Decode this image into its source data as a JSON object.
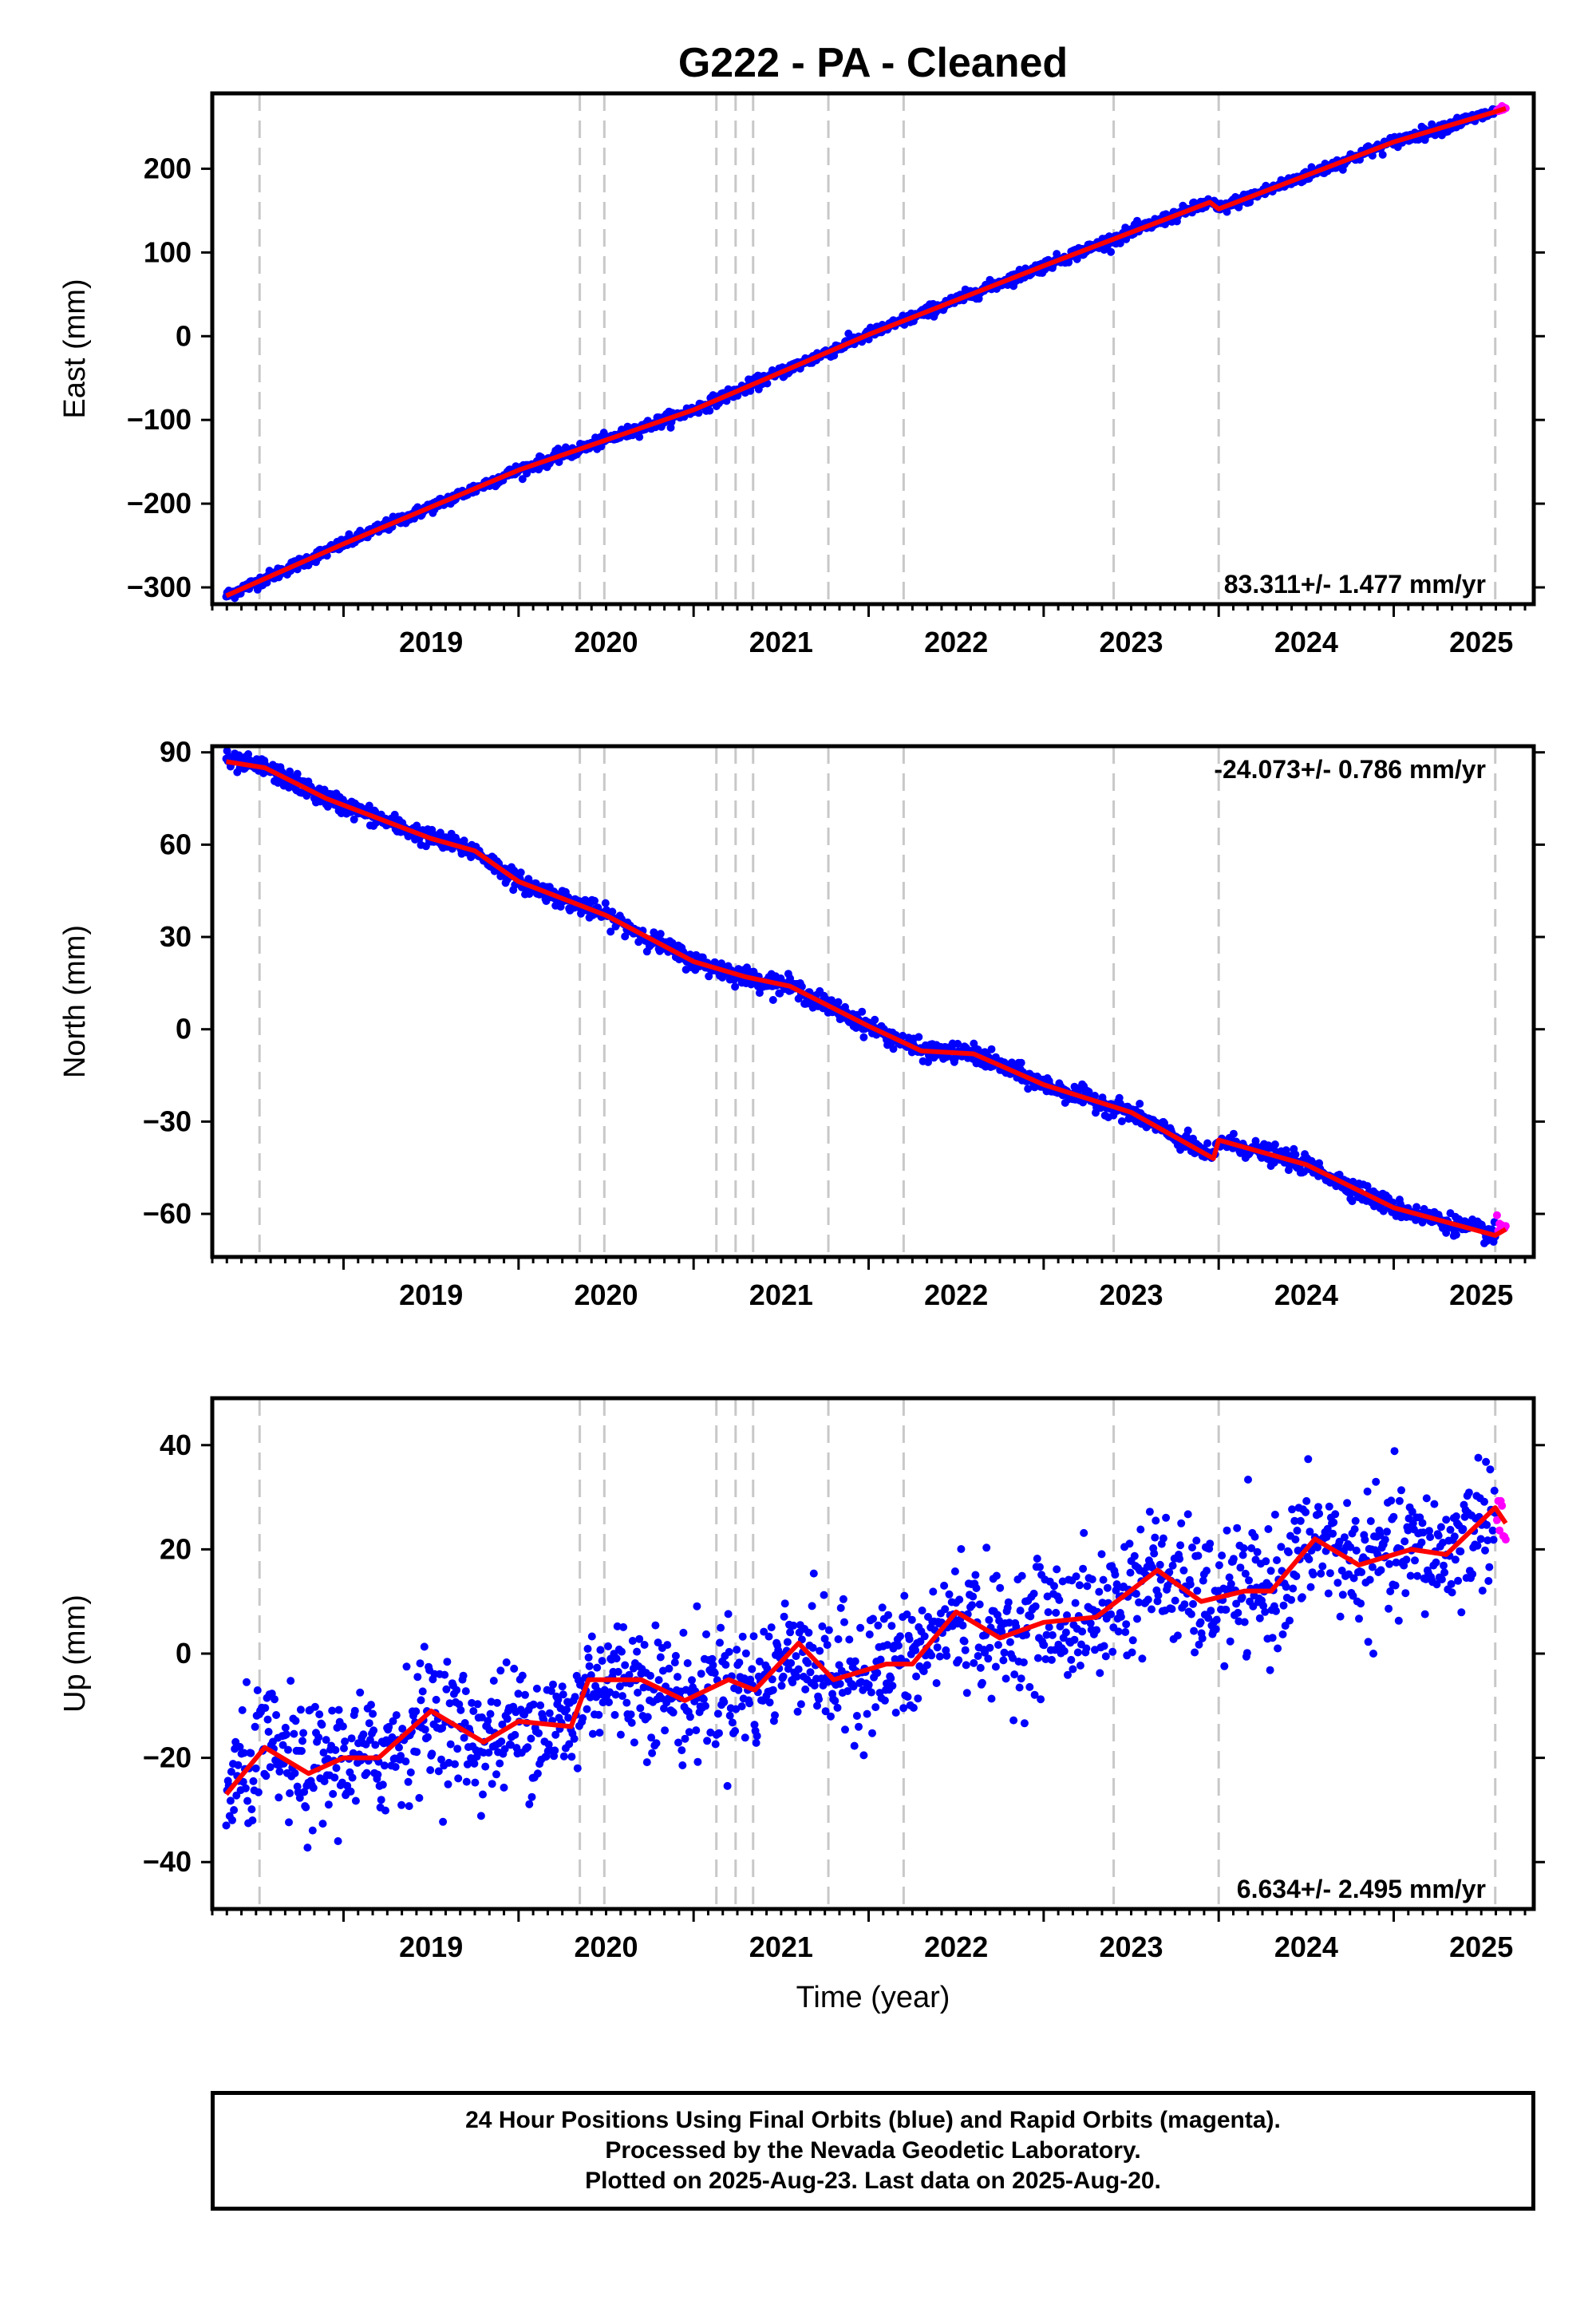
{
  "title": "G222  - PA - Cleaned",
  "colors": {
    "final_orbits": "#0000ff",
    "rapid_orbits": "#ff00ff",
    "model_fit": "#ff0000",
    "event_lines": "#c8c8c8",
    "frame": "#000000"
  },
  "footer": {
    "line1": "24 Hour Positions Using Final Orbits (blue) and Rapid Orbits (magenta).",
    "line2": "Processed by the Nevada Geodetic Laboratory.",
    "line3": "Plotted on 2025-Aug-23. Last data on 2025-Aug-20."
  },
  "chart_data": [
    {
      "type": "scatter",
      "ylabel": "East (mm)",
      "xlabel": "",
      "xlim": [
        2018.25,
        2025.8
      ],
      "ylim": [
        -320,
        290
      ],
      "yticks": [
        -300,
        -200,
        -100,
        0,
        100,
        200
      ],
      "xticks": [
        2019,
        2020,
        2021,
        2022,
        2023,
        2024,
        2025
      ],
      "rate_label": "83.311+/- 1.477 mm/yr",
      "rate_label_position": "bottom-right",
      "event_lines": [
        2018.52,
        2020.35,
        2020.49,
        2021.13,
        2021.24,
        2021.34,
        2021.77,
        2022.2,
        2023.4,
        2024.0,
        2025.58
      ],
      "series": [
        {
          "name": "Final Orbits",
          "color": "#0000ff",
          "x_range": [
            2018.33,
            2025.58
          ],
          "noise": 3.5,
          "trend_points": [
            [
              2018.33,
              -310
            ],
            [
              2019.0,
              -248
            ],
            [
              2020.0,
              -160
            ],
            [
              2021.0,
              -88
            ],
            [
              2022.0,
              2
            ],
            [
              2023.0,
              84
            ],
            [
              2023.95,
              160
            ],
            [
              2024.0,
              152
            ],
            [
              2025.0,
              232
            ],
            [
              2025.58,
              268
            ]
          ]
        },
        {
          "name": "Rapid Orbits",
          "color": "#ff00ff",
          "x_range": [
            2025.59,
            2025.64
          ],
          "noise": 2.5,
          "trend_points": [
            [
              2025.59,
              270
            ],
            [
              2025.64,
              274
            ]
          ]
        }
      ],
      "fit": {
        "name": "Model",
        "color": "#ff0000",
        "points": [
          [
            2018.33,
            -310
          ],
          [
            2019.0,
            -248
          ],
          [
            2020.0,
            -160
          ],
          [
            2021.0,
            -88
          ],
          [
            2022.0,
            2
          ],
          [
            2023.0,
            84
          ],
          [
            2023.95,
            160
          ],
          [
            2024.0,
            152
          ],
          [
            2025.0,
            232
          ],
          [
            2025.58,
            268
          ],
          [
            2025.64,
            272
          ]
        ]
      }
    },
    {
      "type": "scatter",
      "ylabel": "North (mm)",
      "xlabel": "",
      "xlim": [
        2018.25,
        2025.8
      ],
      "ylim": [
        -74,
        92
      ],
      "yticks": [
        -60,
        -30,
        0,
        30,
        60,
        90
      ],
      "xticks": [
        2019,
        2020,
        2021,
        2022,
        2023,
        2024,
        2025
      ],
      "rate_label": "-24.073+/- 0.786 mm/yr",
      "rate_label_position": "top-right",
      "event_lines": [
        2018.52,
        2020.35,
        2020.49,
        2021.13,
        2021.24,
        2021.34,
        2021.77,
        2022.2,
        2023.4,
        2024.0,
        2025.58
      ],
      "series": [
        {
          "name": "Final Orbits",
          "color": "#0000ff",
          "x_range": [
            2018.33,
            2025.58
          ],
          "noise": 1.5,
          "trend_points": [
            [
              2018.33,
              87
            ],
            [
              2018.55,
              85
            ],
            [
              2018.9,
              75
            ],
            [
              2019.5,
              62
            ],
            [
              2019.75,
              58
            ],
            [
              2020.0,
              48
            ],
            [
              2020.5,
              37
            ],
            [
              2021.0,
              22
            ],
            [
              2021.3,
              17
            ],
            [
              2021.55,
              14
            ],
            [
              2022.0,
              1
            ],
            [
              2022.3,
              -7
            ],
            [
              2022.6,
              -8
            ],
            [
              2023.0,
              -18
            ],
            [
              2023.5,
              -27
            ],
            [
              2023.97,
              -42
            ],
            [
              2024.0,
              -36
            ],
            [
              2024.5,
              -44
            ],
            [
              2025.0,
              -58
            ],
            [
              2025.58,
              -67
            ]
          ]
        },
        {
          "name": "Rapid Orbits",
          "color": "#ff00ff",
          "x_range": [
            2025.59,
            2025.64
          ],
          "noise": 3,
          "trend_points": [
            [
              2025.59,
              -66
            ],
            [
              2025.64,
              -64
            ]
          ]
        }
      ],
      "fit": {
        "name": "Model",
        "color": "#ff0000",
        "points": [
          [
            2018.33,
            87
          ],
          [
            2018.55,
            85
          ],
          [
            2018.9,
            75
          ],
          [
            2019.5,
            62
          ],
          [
            2019.75,
            58
          ],
          [
            2020.0,
            48
          ],
          [
            2020.5,
            37
          ],
          [
            2021.0,
            22
          ],
          [
            2021.3,
            17
          ],
          [
            2021.55,
            14
          ],
          [
            2022.0,
            1
          ],
          [
            2022.3,
            -7
          ],
          [
            2022.6,
            -8
          ],
          [
            2023.0,
            -18
          ],
          [
            2023.5,
            -27
          ],
          [
            2023.97,
            -42
          ],
          [
            2024.0,
            -36
          ],
          [
            2024.5,
            -44
          ],
          [
            2025.0,
            -58
          ],
          [
            2025.58,
            -67
          ],
          [
            2025.64,
            -65
          ]
        ]
      }
    },
    {
      "type": "scatter",
      "ylabel": "Up (mm)",
      "xlabel": "Time (year)",
      "xlim": [
        2018.25,
        2025.8
      ],
      "ylim": [
        -49,
        49
      ],
      "yticks": [
        -40,
        -20,
        0,
        20,
        40
      ],
      "xticks": [
        2019,
        2020,
        2021,
        2022,
        2023,
        2024,
        2025
      ],
      "rate_label": "6.634+/- 2.495 mm/yr",
      "rate_label_position": "bottom-right",
      "event_lines": [
        2018.52,
        2020.35,
        2020.49,
        2021.13,
        2021.24,
        2021.34,
        2021.77,
        2022.2,
        2023.4,
        2024.0,
        2025.58
      ],
      "series": [
        {
          "name": "Final Orbits",
          "color": "#0000ff",
          "x_range": [
            2018.33,
            2025.58
          ],
          "noise": 6,
          "trend_points": [
            [
              2018.33,
              -27
            ],
            [
              2018.55,
              -18
            ],
            [
              2018.8,
              -23
            ],
            [
              2019.0,
              -20
            ],
            [
              2019.2,
              -20
            ],
            [
              2019.5,
              -11
            ],
            [
              2019.8,
              -17
            ],
            [
              2020.0,
              -13
            ],
            [
              2020.3,
              -14
            ],
            [
              2020.4,
              -5
            ],
            [
              2020.7,
              -5
            ],
            [
              2020.95,
              -9
            ],
            [
              2021.2,
              -5
            ],
            [
              2021.35,
              -7
            ],
            [
              2021.6,
              2
            ],
            [
              2021.8,
              -5
            ],
            [
              2022.1,
              -2
            ],
            [
              2022.25,
              -2
            ],
            [
              2022.5,
              8
            ],
            [
              2022.75,
              3
            ],
            [
              2023.0,
              6
            ],
            [
              2023.3,
              7
            ],
            [
              2023.65,
              16
            ],
            [
              2023.9,
              10
            ],
            [
              2024.15,
              12
            ],
            [
              2024.3,
              12
            ],
            [
              2024.55,
              22
            ],
            [
              2024.8,
              17
            ],
            [
              2025.1,
              20
            ],
            [
              2025.3,
              19
            ],
            [
              2025.58,
              28
            ]
          ]
        },
        {
          "name": "Rapid Orbits",
          "color": "#ff00ff",
          "x_range": [
            2025.59,
            2025.64
          ],
          "noise": 4,
          "trend_points": [
            [
              2025.59,
              26
            ],
            [
              2025.64,
              25
            ]
          ]
        }
      ],
      "fit": {
        "name": "Model",
        "color": "#ff0000",
        "points": [
          [
            2018.33,
            -27
          ],
          [
            2018.55,
            -18
          ],
          [
            2018.8,
            -23
          ],
          [
            2019.0,
            -20
          ],
          [
            2019.2,
            -20
          ],
          [
            2019.5,
            -11
          ],
          [
            2019.8,
            -17
          ],
          [
            2020.0,
            -13
          ],
          [
            2020.3,
            -14
          ],
          [
            2020.4,
            -5
          ],
          [
            2020.7,
            -5
          ],
          [
            2020.95,
            -9
          ],
          [
            2021.2,
            -5
          ],
          [
            2021.35,
            -7
          ],
          [
            2021.6,
            2
          ],
          [
            2021.8,
            -5
          ],
          [
            2022.1,
            -2
          ],
          [
            2022.25,
            -2
          ],
          [
            2022.5,
            8
          ],
          [
            2022.75,
            3
          ],
          [
            2023.0,
            6
          ],
          [
            2023.3,
            7
          ],
          [
            2023.65,
            16
          ],
          [
            2023.9,
            10
          ],
          [
            2024.15,
            12
          ],
          [
            2024.3,
            12
          ],
          [
            2024.55,
            22
          ],
          [
            2024.8,
            17
          ],
          [
            2025.1,
            20
          ],
          [
            2025.3,
            19
          ],
          [
            2025.58,
            28
          ],
          [
            2025.64,
            25
          ]
        ]
      }
    }
  ]
}
